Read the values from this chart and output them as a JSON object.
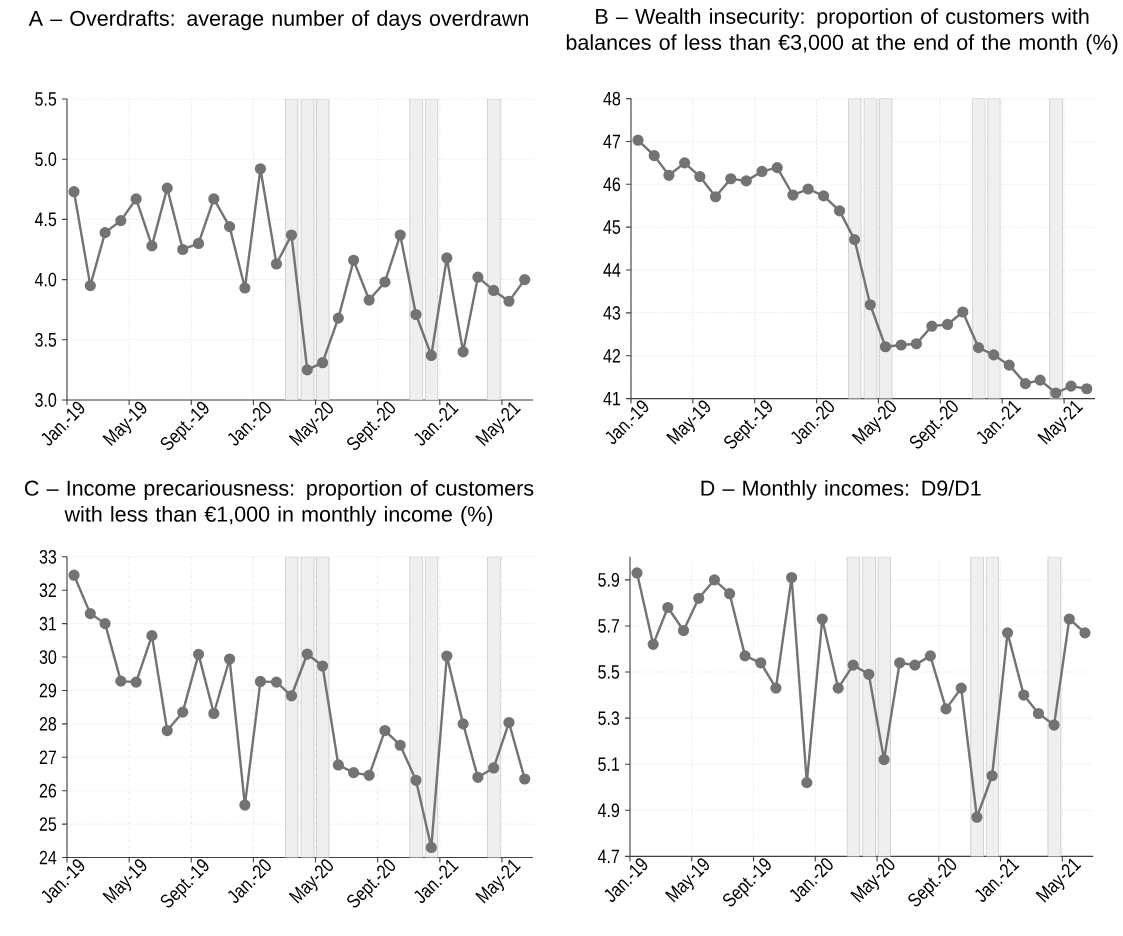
{
  "chart_data": [
    {
      "type": "line",
      "title": "A – Overdrafts: average number of days overdrawn",
      "x": [
        "2019-01-15",
        "2019-02-15",
        "2019-03-15",
        "2019-04-15",
        "2019-05-15",
        "2019-06-15",
        "2019-07-15",
        "2019-08-15",
        "2019-09-15",
        "2019-10-15",
        "2019-11-15",
        "2019-12-15",
        "2020-01-15",
        "2020-02-15",
        "2020-03-15",
        "2020-04-15",
        "2020-05-15",
        "2020-06-15",
        "2020-07-15",
        "2020-08-15",
        "2020-09-15",
        "2020-10-15",
        "2020-11-15",
        "2020-12-15",
        "2021-01-15",
        "2021-02-15",
        "2021-03-15",
        "2021-04-15",
        "2021-05-15",
        "2021-06-15"
      ],
      "xlim": [
        "2019-01-01",
        "2021-07-01"
      ],
      "xticks": [
        {
          "value": "2019-01-01",
          "label": "Jan.-19"
        },
        {
          "value": "2019-05-01",
          "label": "May-19"
        },
        {
          "value": "2019-09-01",
          "label": "Sept.-19"
        },
        {
          "value": "2020-01-01",
          "label": "Jan.-20"
        },
        {
          "value": "2020-05-01",
          "label": "May-20"
        },
        {
          "value": "2020-09-01",
          "label": "Sept.-20"
        },
        {
          "value": "2021-01-01",
          "label": "Jan.-21"
        },
        {
          "value": "2021-05-01",
          "label": "May-21"
        }
      ],
      "ylim": [
        3,
        5.5
      ],
      "yticks": [
        {
          "value": 3,
          "label": "3.0"
        },
        3.5,
        {
          "value": 4,
          "label": "4.0"
        },
        4.5,
        {
          "value": 5,
          "label": "5.0"
        },
        5.5
      ],
      "series": [
        {
          "color": "#737373",
          "values": [
            4.73,
            3.95,
            4.39,
            4.49,
            4.67,
            4.28,
            4.76,
            4.25,
            4.3,
            4.67,
            4.44,
            3.93,
            4.92,
            4.13,
            4.37,
            3.25,
            3.31,
            3.68,
            4.16,
            3.83,
            3.98,
            4.37,
            3.71,
            3.37,
            4.18,
            3.4,
            4.02,
            3.91,
            3.82,
            4.0
          ]
        }
      ],
      "bands": [
        {
          "axis": "x",
          "from": "2020-03-03",
          "to": "2020-03-28",
          "color": "#efefef"
        },
        {
          "axis": "x",
          "from": "2020-04-03",
          "to": "2020-04-28",
          "color": "#efefef"
        },
        {
          "axis": "x",
          "from": "2020-05-03",
          "to": "2020-05-28",
          "color": "#efefef"
        },
        {
          "axis": "x",
          "from": "2020-11-03",
          "to": "2020-11-28",
          "color": "#efefef"
        },
        {
          "axis": "x",
          "from": "2020-12-03",
          "to": "2020-12-28",
          "color": "#efefef"
        },
        {
          "axis": "x",
          "from": "2021-04-03",
          "to": "2021-04-28",
          "color": "#efefef"
        }
      ],
      "grid": true,
      "marker": "circle",
      "line_style": "solid"
    },
    {
      "type": "line",
      "title": "B – Wealth insecurity: proportion of customers with balances of less than €3,000 at the end of the month (%)",
      "x": [
        "2019-01-15",
        "2019-02-15",
        "2019-03-15",
        "2019-04-15",
        "2019-05-15",
        "2019-06-15",
        "2019-07-15",
        "2019-08-15",
        "2019-09-15",
        "2019-10-15",
        "2019-11-15",
        "2019-12-15",
        "2020-01-15",
        "2020-02-15",
        "2020-03-15",
        "2020-04-15",
        "2020-05-15",
        "2020-06-15",
        "2020-07-15",
        "2020-08-15",
        "2020-09-15",
        "2020-10-15",
        "2020-11-15",
        "2020-12-15",
        "2021-01-15",
        "2021-02-15",
        "2021-03-15",
        "2021-04-15",
        "2021-05-15",
        "2021-06-15"
      ],
      "xlim": [
        "2019-01-01",
        "2021-07-01"
      ],
      "xticks": [
        {
          "value": "2019-01-01",
          "label": "Jan.-19"
        },
        {
          "value": "2019-05-01",
          "label": "May-19"
        },
        {
          "value": "2019-09-01",
          "label": "Sept.-19"
        },
        {
          "value": "2020-01-01",
          "label": "Jan.-20"
        },
        {
          "value": "2020-05-01",
          "label": "May-20"
        },
        {
          "value": "2020-09-01",
          "label": "Sept.-20"
        },
        {
          "value": "2021-01-01",
          "label": "Jan.-21"
        },
        {
          "value": "2021-05-01",
          "label": "May-21"
        }
      ],
      "ylim": [
        41,
        48
      ],
      "yticks": [
        41,
        42,
        43,
        44,
        45,
        46,
        47,
        48
      ],
      "series": [
        {
          "color": "#737373",
          "values": [
            47.03,
            46.67,
            46.21,
            46.5,
            46.18,
            45.71,
            46.13,
            46.08,
            46.3,
            46.39,
            45.75,
            45.89,
            45.73,
            45.38,
            44.71,
            43.19,
            42.21,
            42.25,
            42.28,
            42.69,
            42.73,
            43.02,
            42.19,
            42.02,
            41.78,
            41.35,
            41.43,
            41.13,
            41.29,
            41.23
          ]
        }
      ],
      "bands": [
        {
          "axis": "x",
          "from": "2020-03-03",
          "to": "2020-03-28",
          "color": "#efefef"
        },
        {
          "axis": "x",
          "from": "2020-04-03",
          "to": "2020-04-28",
          "color": "#efefef"
        },
        {
          "axis": "x",
          "from": "2020-05-03",
          "to": "2020-05-28",
          "color": "#efefef"
        },
        {
          "axis": "x",
          "from": "2020-11-03",
          "to": "2020-11-28",
          "color": "#efefef"
        },
        {
          "axis": "x",
          "from": "2020-12-03",
          "to": "2020-12-28",
          "color": "#efefef"
        },
        {
          "axis": "x",
          "from": "2021-04-03",
          "to": "2021-04-28",
          "color": "#efefef"
        }
      ],
      "grid": true,
      "marker": "circle",
      "line_style": "solid"
    },
    {
      "type": "line",
      "title": "C – Income precariousness: proportion of customers with less than €1,000 in monthly income (%)",
      "x": [
        "2019-01-15",
        "2019-02-15",
        "2019-03-15",
        "2019-04-15",
        "2019-05-15",
        "2019-06-15",
        "2019-07-15",
        "2019-08-15",
        "2019-09-15",
        "2019-10-15",
        "2019-11-15",
        "2019-12-15",
        "2020-01-15",
        "2020-02-15",
        "2020-03-15",
        "2020-04-15",
        "2020-05-15",
        "2020-06-15",
        "2020-07-15",
        "2020-08-15",
        "2020-09-15",
        "2020-10-15",
        "2020-11-15",
        "2020-12-15",
        "2021-01-15",
        "2021-02-15",
        "2021-03-15",
        "2021-04-15",
        "2021-05-15",
        "2021-06-15"
      ],
      "xlim": [
        "2019-01-01",
        "2021-07-01"
      ],
      "xticks": [
        {
          "value": "2019-01-01",
          "label": "Jan.-19"
        },
        {
          "value": "2019-05-01",
          "label": "May-19"
        },
        {
          "value": "2019-09-01",
          "label": "Sept.-19"
        },
        {
          "value": "2020-01-01",
          "label": "Jan.-20"
        },
        {
          "value": "2020-05-01",
          "label": "May-20"
        },
        {
          "value": "2020-09-01",
          "label": "Sept.-20"
        },
        {
          "value": "2021-01-01",
          "label": "Jan.-21"
        },
        {
          "value": "2021-05-01",
          "label": "May-21"
        }
      ],
      "ylim": [
        24,
        33
      ],
      "yticks": [
        24,
        25,
        26,
        27,
        28,
        29,
        30,
        31,
        32,
        33
      ],
      "series": [
        {
          "color": "#737373",
          "values": [
            32.45,
            31.3,
            31.0,
            29.28,
            29.25,
            30.64,
            27.8,
            28.35,
            30.08,
            28.31,
            29.94,
            25.57,
            29.27,
            29.25,
            28.84,
            30.09,
            29.73,
            26.77,
            26.54,
            26.46,
            27.8,
            27.36,
            26.31,
            24.3,
            30.03,
            28.0,
            26.4,
            26.68,
            28.04,
            26.35
          ]
        }
      ],
      "bands": [
        {
          "axis": "x",
          "from": "2020-03-03",
          "to": "2020-03-28",
          "color": "#efefef"
        },
        {
          "axis": "x",
          "from": "2020-04-03",
          "to": "2020-04-28",
          "color": "#efefef"
        },
        {
          "axis": "x",
          "from": "2020-05-03",
          "to": "2020-05-28",
          "color": "#efefef"
        },
        {
          "axis": "x",
          "from": "2020-11-03",
          "to": "2020-11-28",
          "color": "#efefef"
        },
        {
          "axis": "x",
          "from": "2020-12-03",
          "to": "2020-12-28",
          "color": "#efefef"
        },
        {
          "axis": "x",
          "from": "2021-04-03",
          "to": "2021-04-28",
          "color": "#efefef"
        }
      ],
      "grid": true,
      "marker": "circle",
      "line_style": "solid"
    },
    {
      "type": "line",
      "title": "D – Monthly incomes: D9/D1",
      "x": [
        "2019-01-15",
        "2019-02-15",
        "2019-03-15",
        "2019-04-15",
        "2019-05-15",
        "2019-06-15",
        "2019-07-15",
        "2019-08-15",
        "2019-09-15",
        "2019-10-15",
        "2019-11-15",
        "2019-12-15",
        "2020-01-15",
        "2020-02-15",
        "2020-03-15",
        "2020-04-15",
        "2020-05-15",
        "2020-06-15",
        "2020-07-15",
        "2020-08-15",
        "2020-09-15",
        "2020-10-15",
        "2020-11-15",
        "2020-12-15",
        "2021-01-15",
        "2021-02-15",
        "2021-03-15",
        "2021-04-15",
        "2021-05-15",
        "2021-06-15"
      ],
      "xlim": [
        "2019-01-01",
        "2021-07-01"
      ],
      "xticks": [
        {
          "value": "2019-01-01",
          "label": "Jan.-19"
        },
        {
          "value": "2019-05-01",
          "label": "May-19"
        },
        {
          "value": "2019-09-01",
          "label": "Sept.-19"
        },
        {
          "value": "2020-01-01",
          "label": "Jan.-20"
        },
        {
          "value": "2020-05-01",
          "label": "May-20"
        },
        {
          "value": "2020-09-01",
          "label": "Sept.-20"
        },
        {
          "value": "2021-01-01",
          "label": "Jan.-21"
        },
        {
          "value": "2021-05-01",
          "label": "May-21"
        }
      ],
      "ylim": [
        4.7,
        6
      ],
      "yticks": [
        4.7,
        4.9,
        5.1,
        5.3,
        5.5,
        5.7,
        5.9
      ],
      "series": [
        {
          "color": "#737373",
          "values": [
            5.93,
            5.62,
            5.78,
            5.68,
            5.82,
            5.9,
            5.84,
            5.57,
            5.54,
            5.43,
            5.91,
            5.02,
            5.73,
            5.43,
            5.53,
            5.49,
            5.12,
            5.54,
            5.53,
            5.57,
            5.34,
            5.43,
            4.87,
            5.05,
            5.67,
            5.4,
            5.32,
            5.27,
            5.73,
            5.67
          ]
        }
      ],
      "bands": [
        {
          "axis": "x",
          "from": "2020-03-03",
          "to": "2020-03-28",
          "color": "#efefef"
        },
        {
          "axis": "x",
          "from": "2020-04-03",
          "to": "2020-04-28",
          "color": "#efefef"
        },
        {
          "axis": "x",
          "from": "2020-05-03",
          "to": "2020-05-28",
          "color": "#efefef"
        },
        {
          "axis": "x",
          "from": "2020-11-03",
          "to": "2020-11-28",
          "color": "#efefef"
        },
        {
          "axis": "x",
          "from": "2020-12-03",
          "to": "2020-12-28",
          "color": "#efefef"
        },
        {
          "axis": "x",
          "from": "2021-04-03",
          "to": "2021-04-28",
          "color": "#efefef"
        }
      ],
      "grid": true,
      "marker": "circle",
      "line_style": "solid"
    }
  ]
}
